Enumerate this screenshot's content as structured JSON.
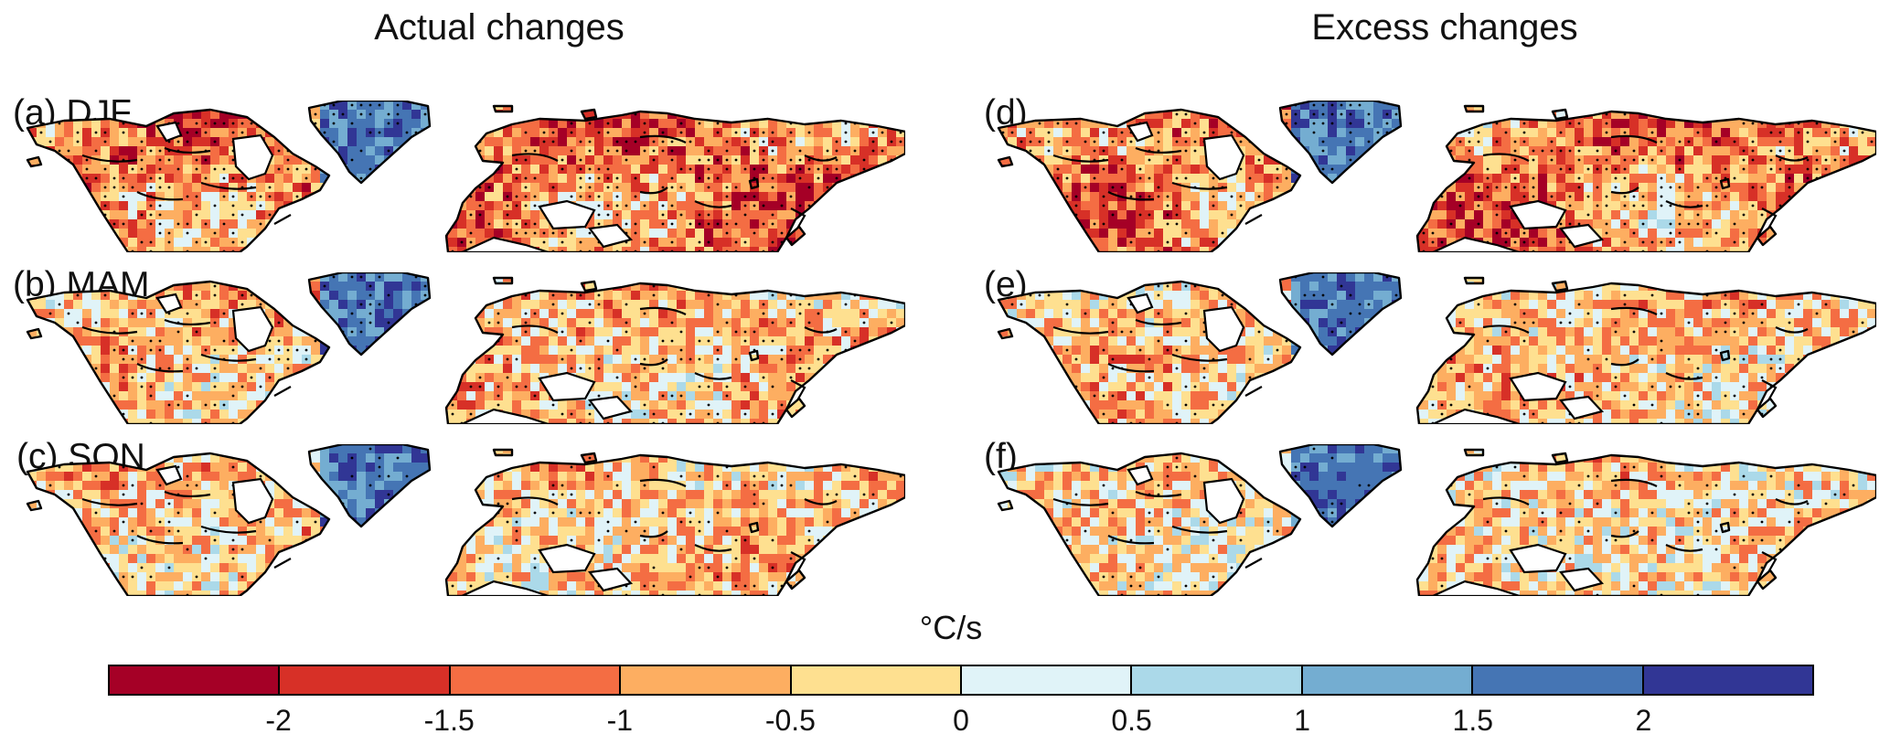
{
  "titles": {
    "left": "Actual changes",
    "right": "Excess changes"
  },
  "panels": [
    {
      "label": "(a) DJF",
      "intensity": 0.85,
      "seed": 11
    },
    {
      "label": "(b) MAM",
      "intensity": 0.45,
      "seed": 23
    },
    {
      "label": "(c) SON",
      "intensity": 0.35,
      "seed": 37
    },
    {
      "label": "(d)",
      "intensity": 0.75,
      "seed": 41
    },
    {
      "label": "(e)",
      "intensity": 0.35,
      "seed": 53
    },
    {
      "label": "(f)",
      "intensity": 0.3,
      "seed": 67
    }
  ],
  "colorbar": {
    "unit": "°C/s",
    "colors": [
      "#a50026",
      "#d73027",
      "#f46d43",
      "#fdae61",
      "#fee090",
      "#e0f3f8",
      "#abd9e9",
      "#74add1",
      "#4575b4",
      "#313695"
    ],
    "ticks": [
      "-2",
      "-1.5",
      "-1",
      "-0.5",
      "0",
      "0.5",
      "1",
      "1.5",
      "2"
    ]
  }
}
